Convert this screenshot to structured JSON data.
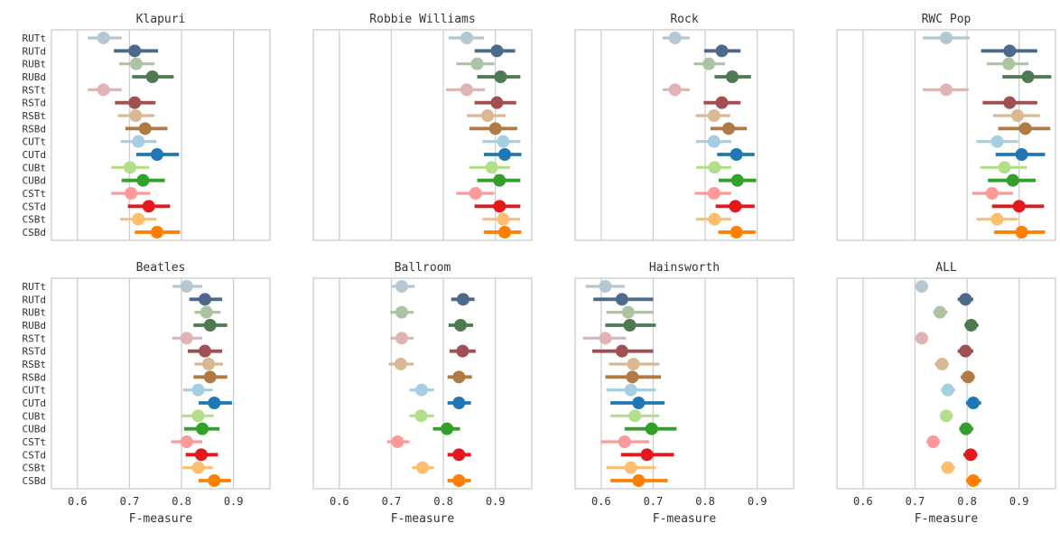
{
  "figure_xlabel": "F-measure",
  "legend_colors": {
    "RUTt": "#b5c7d3",
    "RUTd": "#4d6a8a",
    "RUBt": "#adc3a3",
    "RUBd": "#4d7a50",
    "RSTt": "#e0b4b4",
    "RSTd": "#a05050",
    "RSBt": "#d9b994",
    "RSBd": "#b07a45",
    "CUTt": "#a6cee3",
    "CUTd": "#1f78b4",
    "CUBt": "#b2df8a",
    "CUBd": "#33a02c",
    "CSTt": "#fb9a99",
    "CSTd": "#e31a1c",
    "CSBt": "#fdbf6f",
    "CSBd": "#ff7f00"
  },
  "chart_data": [
    {
      "type": "scatter",
      "style": "point-interval",
      "title": "Klapuri",
      "xlabel": "",
      "xlim": [
        0.55,
        0.97
      ],
      "xticks": [],
      "categories": [
        "RUTt",
        "RUTd",
        "RUBt",
        "RUBd",
        "RSTt",
        "RSTd",
        "RSBt",
        "RSBd",
        "CUTt",
        "CUTd",
        "CUBt",
        "CUBd",
        "CSTt",
        "CSTd",
        "CSBt",
        "CSBd"
      ],
      "values": [
        0.65,
        0.71,
        0.713,
        0.744,
        0.65,
        0.71,
        0.712,
        0.73,
        0.717,
        0.753,
        0.701,
        0.726,
        0.703,
        0.737,
        0.717,
        0.753
      ],
      "ci_low": [
        0.62,
        0.67,
        0.68,
        0.705,
        0.62,
        0.672,
        0.678,
        0.692,
        0.683,
        0.713,
        0.665,
        0.685,
        0.665,
        0.697,
        0.682,
        0.71
      ],
      "ci_high": [
        0.685,
        0.755,
        0.748,
        0.785,
        0.685,
        0.75,
        0.748,
        0.773,
        0.752,
        0.795,
        0.738,
        0.768,
        0.74,
        0.778,
        0.752,
        0.797
      ],
      "grid": true
    },
    {
      "type": "scatter",
      "style": "point-interval",
      "title": "Robbie Williams",
      "xlabel": "",
      "xlim": [
        0.55,
        0.97
      ],
      "xticks": [],
      "categories": [
        "RUTt",
        "RUTd",
        "RUBt",
        "RUBd",
        "RSTt",
        "RSTd",
        "RSBt",
        "RSBd",
        "CUTt",
        "CUTd",
        "CUBt",
        "CUBd",
        "CSTt",
        "CSTd",
        "CSBt",
        "CSBd"
      ],
      "values": [
        0.845,
        0.903,
        0.865,
        0.91,
        0.845,
        0.903,
        0.885,
        0.9,
        0.915,
        0.918,
        0.893,
        0.908,
        0.862,
        0.908,
        0.915,
        0.918
      ],
      "ci_low": [
        0.81,
        0.86,
        0.825,
        0.865,
        0.805,
        0.86,
        0.845,
        0.85,
        0.875,
        0.878,
        0.85,
        0.865,
        0.825,
        0.86,
        0.875,
        0.878
      ],
      "ci_high": [
        0.878,
        0.938,
        0.898,
        0.948,
        0.88,
        0.94,
        0.92,
        0.942,
        0.948,
        0.95,
        0.928,
        0.948,
        0.898,
        0.948,
        0.948,
        0.95
      ],
      "grid": true
    },
    {
      "type": "scatter",
      "style": "point-interval",
      "title": "Rock",
      "xlabel": "",
      "xlim": [
        0.55,
        0.97
      ],
      "xticks": [],
      "categories": [
        "RUTt",
        "RUTd",
        "RUBt",
        "RUBd",
        "RSTt",
        "RSTd",
        "RSBt",
        "RSBd",
        "CUTt",
        "CUTd",
        "CUBt",
        "CUBd",
        "CSTt",
        "CSTd",
        "CSBt",
        "CSBd"
      ],
      "values": [
        0.742,
        0.832,
        0.807,
        0.852,
        0.742,
        0.832,
        0.817,
        0.845,
        0.817,
        0.86,
        0.818,
        0.862,
        0.817,
        0.858,
        0.818,
        0.86
      ],
      "ci_low": [
        0.718,
        0.798,
        0.778,
        0.818,
        0.718,
        0.797,
        0.782,
        0.81,
        0.782,
        0.823,
        0.783,
        0.826,
        0.78,
        0.82,
        0.782,
        0.825
      ],
      "ci_high": [
        0.77,
        0.868,
        0.838,
        0.888,
        0.77,
        0.868,
        0.848,
        0.88,
        0.85,
        0.895,
        0.85,
        0.898,
        0.85,
        0.895,
        0.85,
        0.897
      ],
      "grid": true
    },
    {
      "type": "scatter",
      "style": "point-interval",
      "title": "RWC Pop",
      "xlabel": "",
      "xlim": [
        0.55,
        0.97
      ],
      "xticks": [],
      "categories": [
        "RUTt",
        "RUTd",
        "RUBt",
        "RUBd",
        "RSTt",
        "RSTd",
        "RSBt",
        "RSBd",
        "CUTt",
        "CUTd",
        "CUBt",
        "CUBd",
        "CSTt",
        "CSTd",
        "CSBt",
        "CSBd"
      ],
      "values": [
        0.76,
        0.882,
        0.88,
        0.917,
        0.76,
        0.882,
        0.897,
        0.912,
        0.858,
        0.905,
        0.872,
        0.888,
        0.848,
        0.9,
        0.858,
        0.905
      ],
      "ci_low": [
        0.715,
        0.827,
        0.838,
        0.868,
        0.715,
        0.83,
        0.85,
        0.86,
        0.818,
        0.855,
        0.825,
        0.84,
        0.81,
        0.848,
        0.818,
        0.852
      ],
      "ci_high": [
        0.805,
        0.935,
        0.918,
        0.962,
        0.803,
        0.935,
        0.94,
        0.96,
        0.898,
        0.95,
        0.915,
        0.932,
        0.888,
        0.948,
        0.898,
        0.95
      ],
      "grid": true
    },
    {
      "type": "scatter",
      "style": "point-interval",
      "title": "Beatles",
      "xlabel": "F-measure",
      "xlim": [
        0.55,
        0.97
      ],
      "xticks": [
        0.6,
        0.7,
        0.8,
        0.9
      ],
      "categories": [
        "RUTt",
        "RUTd",
        "RUBt",
        "RUBd",
        "RSTt",
        "RSTd",
        "RSBt",
        "RSBd",
        "CUTt",
        "CUTd",
        "CUBt",
        "CUBd",
        "CSTt",
        "CSTd",
        "CSBt",
        "CSBd"
      ],
      "values": [
        0.81,
        0.845,
        0.848,
        0.855,
        0.81,
        0.845,
        0.852,
        0.855,
        0.832,
        0.863,
        0.832,
        0.84,
        0.81,
        0.838,
        0.832,
        0.863
      ],
      "ci_low": [
        0.783,
        0.815,
        0.825,
        0.823,
        0.782,
        0.812,
        0.825,
        0.823,
        0.803,
        0.833,
        0.8,
        0.805,
        0.78,
        0.808,
        0.802,
        0.833
      ],
      "ci_high": [
        0.84,
        0.878,
        0.875,
        0.888,
        0.84,
        0.878,
        0.88,
        0.888,
        0.86,
        0.897,
        0.862,
        0.873,
        0.84,
        0.87,
        0.86,
        0.895
      ],
      "grid": true
    },
    {
      "type": "scatter",
      "style": "point-interval",
      "title": "Ballroom",
      "xlabel": "F-measure",
      "xlim": [
        0.55,
        0.97
      ],
      "xticks": [
        0.6,
        0.7,
        0.8,
        0.9
      ],
      "categories": [
        "RUTt",
        "RUTd",
        "RUBt",
        "RUBd",
        "RSTt",
        "RSTd",
        "RSBt",
        "RSBd",
        "CUTt",
        "CUTd",
        "CUBt",
        "CUBd",
        "CSTt",
        "CSTd",
        "CSBt",
        "CSBd"
      ],
      "values": [
        0.72,
        0.838,
        0.72,
        0.833,
        0.72,
        0.837,
        0.718,
        0.83,
        0.758,
        0.83,
        0.757,
        0.807,
        0.712,
        0.83,
        0.76,
        0.83
      ],
      "ci_low": [
        0.7,
        0.815,
        0.698,
        0.81,
        0.698,
        0.812,
        0.695,
        0.808,
        0.735,
        0.808,
        0.735,
        0.78,
        0.692,
        0.808,
        0.74,
        0.808
      ],
      "ci_high": [
        0.745,
        0.86,
        0.743,
        0.857,
        0.743,
        0.862,
        0.743,
        0.855,
        0.782,
        0.853,
        0.782,
        0.832,
        0.735,
        0.853,
        0.782,
        0.853
      ],
      "grid": true
    },
    {
      "type": "scatter",
      "style": "point-interval",
      "title": "Hainsworth",
      "xlabel": "F-measure",
      "xlim": [
        0.55,
        0.97
      ],
      "xticks": [
        0.6,
        0.7,
        0.8,
        0.9
      ],
      "categories": [
        "RUTt",
        "RUTd",
        "RUBt",
        "RUBd",
        "RSTt",
        "RSTd",
        "RSBt",
        "RSBd",
        "CUTt",
        "CUTd",
        "CUBt",
        "CUBd",
        "CSTt",
        "CSTd",
        "CSBt",
        "CSBd"
      ],
      "values": [
        0.608,
        0.64,
        0.652,
        0.655,
        0.608,
        0.64,
        0.662,
        0.66,
        0.657,
        0.672,
        0.665,
        0.697,
        0.645,
        0.688,
        0.657,
        0.672
      ],
      "ci_low": [
        0.57,
        0.585,
        0.61,
        0.608,
        0.565,
        0.583,
        0.615,
        0.608,
        0.61,
        0.618,
        0.618,
        0.645,
        0.6,
        0.638,
        0.61,
        0.618
      ],
      "ci_high": [
        0.645,
        0.7,
        0.7,
        0.705,
        0.648,
        0.7,
        0.712,
        0.715,
        0.705,
        0.722,
        0.712,
        0.745,
        0.692,
        0.74,
        0.705,
        0.728
      ],
      "grid": true
    },
    {
      "type": "scatter",
      "style": "point-interval",
      "title": "ALL",
      "xlabel": "F-measure",
      "xlim": [
        0.55,
        0.97
      ],
      "xticks": [
        0.6,
        0.7,
        0.8,
        0.9
      ],
      "categories": [
        "RUTt",
        "RUTd",
        "RUBt",
        "RUBd",
        "RSTt",
        "RSTd",
        "RSBt",
        "RSBd",
        "CUTt",
        "CUTd",
        "CUBt",
        "CUBd",
        "CSTt",
        "CSTd",
        "CSBt",
        "CSBd"
      ],
      "values": [
        0.713,
        0.797,
        0.748,
        0.808,
        0.713,
        0.797,
        0.752,
        0.802,
        0.763,
        0.812,
        0.76,
        0.798,
        0.735,
        0.807,
        0.763,
        0.812
      ],
      "ci_low": [
        0.7,
        0.782,
        0.735,
        0.795,
        0.7,
        0.782,
        0.738,
        0.788,
        0.75,
        0.798,
        0.748,
        0.785,
        0.722,
        0.793,
        0.75,
        0.798
      ],
      "ci_high": [
        0.725,
        0.812,
        0.762,
        0.822,
        0.725,
        0.812,
        0.765,
        0.815,
        0.777,
        0.827,
        0.773,
        0.812,
        0.748,
        0.82,
        0.777,
        0.827
      ],
      "grid": true
    }
  ]
}
